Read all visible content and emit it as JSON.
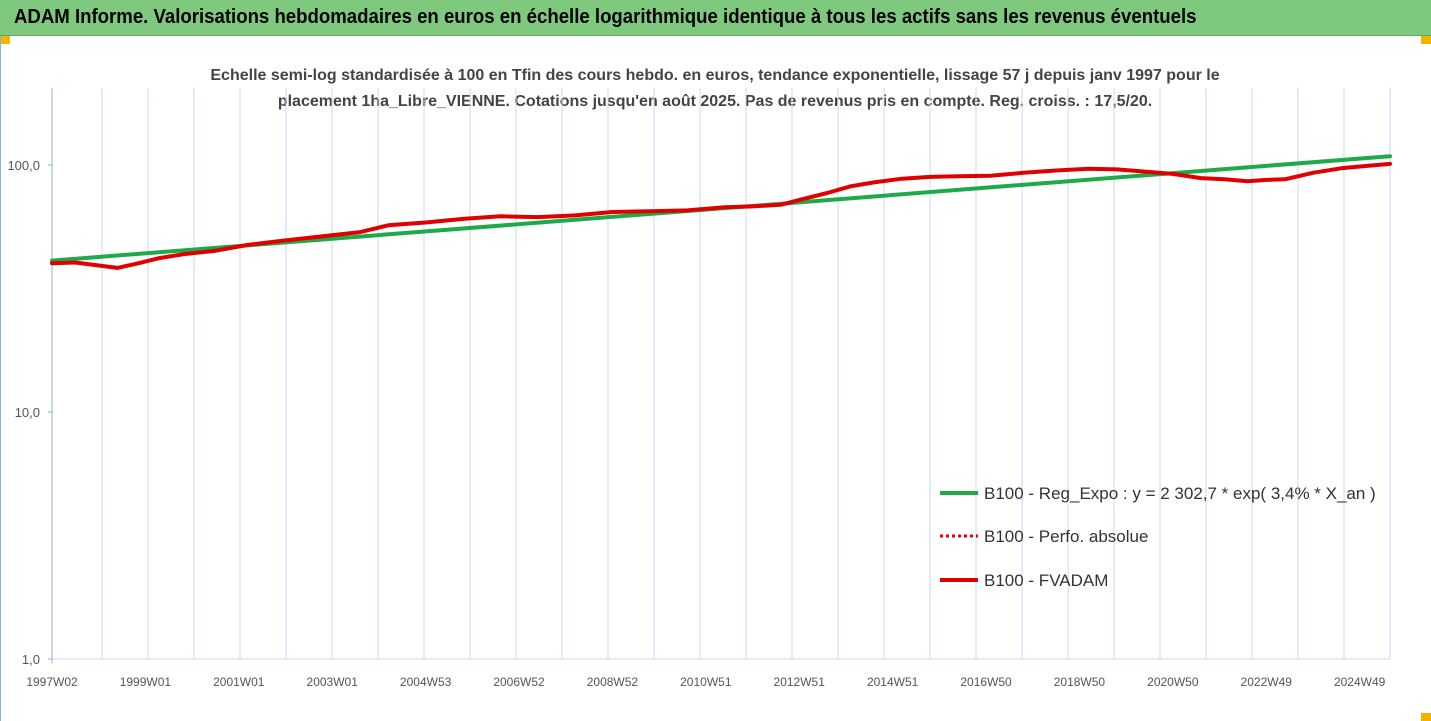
{
  "header": {
    "title": "ADAM Informe. Valorisations hebdomadaires en euros en échelle logarithmique identique à tous les actifs sans les revenus éventuels"
  },
  "chart_data": {
    "type": "line",
    "title_line1": "Echelle semi-log standardisée à 100 en Tfin des cours hebdo. en euros, tendance exponentielle, lissage 57 j depuis janv 1997 pour le",
    "title_line2": "placement 1ha_Libre_VIENNE. Cotations jusqu'en août 2025. Pas de revenus pris en compte. Reg. croiss. : 17,5/20.",
    "y_scale": "log",
    "ylim": [
      1,
      200
    ],
    "xlim": [
      1997.0,
      2025.65
    ],
    "y_ticks": [
      {
        "value": 1,
        "label": "1,0"
      },
      {
        "value": 10,
        "label": "10,0"
      },
      {
        "value": 100,
        "label": "100,0"
      }
    ],
    "x_ticks": [
      {
        "value": 1997.0,
        "label": "1997W02"
      },
      {
        "value": 1999.0,
        "label": "1999W01"
      },
      {
        "value": 2001.0,
        "label": "2001W01"
      },
      {
        "value": 2003.0,
        "label": "2003W01"
      },
      {
        "value": 2005.0,
        "label": "2004W53"
      },
      {
        "value": 2007.0,
        "label": "2006W52"
      },
      {
        "value": 2009.0,
        "label": "2008W52"
      },
      {
        "value": 2011.0,
        "label": "2010W51"
      },
      {
        "value": 2013.0,
        "label": "2012W51"
      },
      {
        "value": 2015.0,
        "label": "2014W51"
      },
      {
        "value": 2017.0,
        "label": "2016W50"
      },
      {
        "value": 2019.0,
        "label": "2018W50"
      },
      {
        "value": 2021.0,
        "label": "2020W50"
      },
      {
        "value": 2023.0,
        "label": "2022W49"
      },
      {
        "value": 2025.0,
        "label": "2024W49"
      }
    ],
    "grid": "vertical",
    "legend_position": "right",
    "colors": {
      "trend": "#1faa4a",
      "perf": "#e00000",
      "fvadam": "#e00000",
      "grid": "#c9daf0",
      "axis": "#8fb0d8"
    },
    "series": [
      {
        "name": "B100 - Reg_Expo : y = 2 302,7 * exp( 3,4% *  X_an )",
        "style": "solid-green",
        "x": [
          1997.0,
          2025.65
        ],
        "y": [
          41.0,
          108.5
        ]
      },
      {
        "name": "B100 - Perfo. absolue",
        "style": "dotted-red",
        "x": [],
        "y": []
      },
      {
        "name": "B100 - FVADAM",
        "style": "solid-red",
        "x": [
          1997.0,
          1997.5,
          1998.0,
          1998.4,
          1998.8,
          1999.3,
          1999.8,
          2000.5,
          2001.2,
          2002.0,
          2002.8,
          2003.6,
          2004.2,
          2005.0,
          2005.8,
          2006.6,
          2007.4,
          2008.2,
          2009.0,
          2009.8,
          2010.6,
          2011.4,
          2012.0,
          2012.6,
          2013.1,
          2013.6,
          2014.1,
          2014.6,
          2015.2,
          2015.8,
          2016.4,
          2017.1,
          2017.8,
          2018.5,
          2019.2,
          2019.8,
          2020.4,
          2021.0,
          2021.6,
          2022.1,
          2022.6,
          2023.0,
          2023.4,
          2024.0,
          2024.6,
          2025.1,
          2025.65
        ],
        "y": [
          40.0,
          40.3,
          39.2,
          38.3,
          39.8,
          42.0,
          43.5,
          45.0,
          47.5,
          49.5,
          51.5,
          53.5,
          57.0,
          58.5,
          60.5,
          62.0,
          61.5,
          62.5,
          64.5,
          65.0,
          65.5,
          67.5,
          68.0,
          69.0,
          73.0,
          77.0,
          82.0,
          85.0,
          88.0,
          89.5,
          90.0,
          90.5,
          93.0,
          95.0,
          96.5,
          96.0,
          94.0,
          92.0,
          88.5,
          87.5,
          86.0,
          87.0,
          87.5,
          93.0,
          97.0,
          99.0,
          101.0
        ]
      }
    ]
  }
}
